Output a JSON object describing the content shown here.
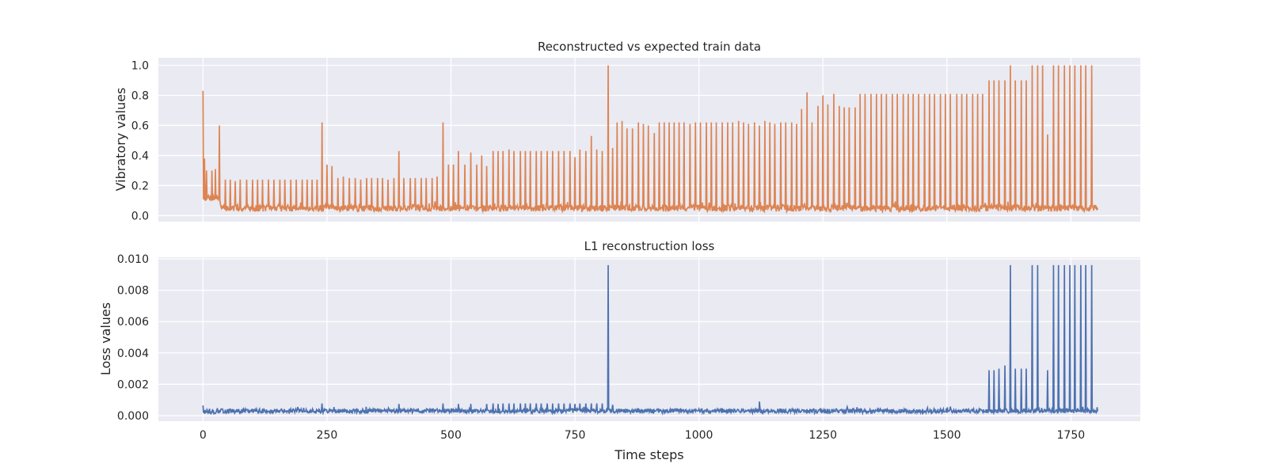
{
  "chart_data": [
    {
      "type": "line",
      "title": "Reconstructed vs expected train data",
      "xlabel": "",
      "ylabel": "Vibratory values",
      "xlim": [
        -90,
        1890
      ],
      "ylim": [
        -0.04,
        1.05
      ],
      "xticks": [
        0,
        250,
        500,
        750,
        1000,
        1250,
        1500,
        1750
      ],
      "yticks": [
        0.0,
        0.2,
        0.4,
        0.6,
        0.8,
        1.0
      ],
      "ytick_labels": [
        "0.0",
        "0.2",
        "0.4",
        "0.6",
        "0.8",
        "1.0"
      ],
      "grid": true,
      "color": "#dd8452",
      "spikes": [
        [
          0,
          0.83
        ],
        [
          3,
          0.38
        ],
        [
          7,
          0.3
        ],
        [
          18,
          0.3
        ],
        [
          25,
          0.31
        ],
        [
          33,
          0.6
        ],
        [
          45,
          0.24
        ],
        [
          55,
          0.24
        ],
        [
          65,
          0.23
        ],
        [
          75,
          0.24
        ],
        [
          88,
          0.24
        ],
        [
          100,
          0.24
        ],
        [
          110,
          0.24
        ],
        [
          120,
          0.24
        ],
        [
          132,
          0.24
        ],
        [
          143,
          0.24
        ],
        [
          155,
          0.24
        ],
        [
          165,
          0.24
        ],
        [
          177,
          0.24
        ],
        [
          188,
          0.24
        ],
        [
          200,
          0.24
        ],
        [
          210,
          0.24
        ],
        [
          220,
          0.24
        ],
        [
          230,
          0.24
        ],
        [
          240,
          0.62
        ],
        [
          250,
          0.34
        ],
        [
          260,
          0.33
        ],
        [
          272,
          0.25
        ],
        [
          283,
          0.26
        ],
        [
          295,
          0.25
        ],
        [
          307,
          0.25
        ],
        [
          318,
          0.24
        ],
        [
          330,
          0.25
        ],
        [
          340,
          0.25
        ],
        [
          352,
          0.25
        ],
        [
          362,
          0.25
        ],
        [
          373,
          0.24
        ],
        [
          385,
          0.25
        ],
        [
          395,
          0.43
        ],
        [
          405,
          0.25
        ],
        [
          418,
          0.25
        ],
        [
          428,
          0.25
        ],
        [
          440,
          0.25
        ],
        [
          450,
          0.25
        ],
        [
          462,
          0.25
        ],
        [
          472,
          0.26
        ],
        [
          484,
          0.62
        ],
        [
          495,
          0.34
        ],
        [
          505,
          0.34
        ],
        [
          515,
          0.43
        ],
        [
          528,
          0.34
        ],
        [
          540,
          0.42
        ],
        [
          552,
          0.34
        ],
        [
          562,
          0.4
        ],
        [
          572,
          0.33
        ],
        [
          585,
          0.43
        ],
        [
          595,
          0.43
        ],
        [
          605,
          0.43
        ],
        [
          617,
          0.44
        ],
        [
          627,
          0.43
        ],
        [
          640,
          0.43
        ],
        [
          650,
          0.43
        ],
        [
          660,
          0.43
        ],
        [
          672,
          0.43
        ],
        [
          682,
          0.43
        ],
        [
          694,
          0.43
        ],
        [
          705,
          0.43
        ],
        [
          717,
          0.43
        ],
        [
          728,
          0.43
        ],
        [
          740,
          0.43
        ],
        [
          750,
          0.39
        ],
        [
          760,
          0.44
        ],
        [
          772,
          0.43
        ],
        [
          783,
          0.53
        ],
        [
          794,
          0.44
        ],
        [
          805,
          0.43
        ],
        [
          817,
          1.0
        ],
        [
          826,
          0.45
        ],
        [
          835,
          0.62
        ],
        [
          845,
          0.63
        ],
        [
          855,
          0.58
        ],
        [
          866,
          0.58
        ],
        [
          878,
          0.62
        ],
        [
          888,
          0.61
        ],
        [
          898,
          0.6
        ],
        [
          910,
          0.55
        ],
        [
          920,
          0.62
        ],
        [
          930,
          0.62
        ],
        [
          940,
          0.62
        ],
        [
          950,
          0.62
        ],
        [
          960,
          0.62
        ],
        [
          970,
          0.62
        ],
        [
          982,
          0.61
        ],
        [
          993,
          0.62
        ],
        [
          1003,
          0.62
        ],
        [
          1015,
          0.62
        ],
        [
          1025,
          0.62
        ],
        [
          1035,
          0.62
        ],
        [
          1047,
          0.62
        ],
        [
          1058,
          0.62
        ],
        [
          1068,
          0.62
        ],
        [
          1080,
          0.63
        ],
        [
          1090,
          0.62
        ],
        [
          1100,
          0.61
        ],
        [
          1112,
          0.62
        ],
        [
          1122,
          0.6
        ],
        [
          1133,
          0.63
        ],
        [
          1143,
          0.62
        ],
        [
          1153,
          0.61
        ],
        [
          1165,
          0.62
        ],
        [
          1175,
          0.62
        ],
        [
          1187,
          0.62
        ],
        [
          1197,
          0.61
        ],
        [
          1207,
          0.71
        ],
        [
          1218,
          0.82
        ],
        [
          1228,
          0.62
        ],
        [
          1240,
          0.73
        ],
        [
          1250,
          0.8
        ],
        [
          1260,
          0.74
        ],
        [
          1272,
          0.81
        ],
        [
          1283,
          0.73
        ],
        [
          1293,
          0.72
        ],
        [
          1303,
          0.72
        ],
        [
          1315,
          0.72
        ],
        [
          1325,
          0.81
        ],
        [
          1335,
          0.81
        ],
        [
          1347,
          0.81
        ],
        [
          1358,
          0.81
        ],
        [
          1368,
          0.81
        ],
        [
          1378,
          0.81
        ],
        [
          1390,
          0.81
        ],
        [
          1400,
          0.81
        ],
        [
          1412,
          0.81
        ],
        [
          1422,
          0.81
        ],
        [
          1432,
          0.81
        ],
        [
          1443,
          0.81
        ],
        [
          1455,
          0.81
        ],
        [
          1465,
          0.81
        ],
        [
          1475,
          0.81
        ],
        [
          1487,
          0.81
        ],
        [
          1497,
          0.81
        ],
        [
          1507,
          0.81
        ],
        [
          1520,
          0.81
        ],
        [
          1530,
          0.81
        ],
        [
          1540,
          0.81
        ],
        [
          1552,
          0.81
        ],
        [
          1562,
          0.81
        ],
        [
          1572,
          0.81
        ],
        [
          1585,
          0.9
        ],
        [
          1595,
          0.9
        ],
        [
          1605,
          0.9
        ],
        [
          1617,
          0.9
        ],
        [
          1628,
          1.0
        ],
        [
          1638,
          0.9
        ],
        [
          1650,
          0.9
        ],
        [
          1660,
          0.9
        ],
        [
          1672,
          1.0
        ],
        [
          1683,
          1.0
        ],
        [
          1693,
          1.0
        ],
        [
          1703,
          0.54
        ],
        [
          1715,
          1.0
        ],
        [
          1725,
          1.0
        ],
        [
          1737,
          1.0
        ],
        [
          1748,
          1.0
        ],
        [
          1758,
          1.0
        ],
        [
          1770,
          1.0
        ],
        [
          1780,
          1.0
        ],
        [
          1792,
          1.0
        ]
      ],
      "baseline": {
        "x_start": 0,
        "x_end": 1804,
        "early_level": 0.12,
        "early_until": 35,
        "level": 0.05
      }
    },
    {
      "type": "line",
      "title": "L1 reconstruction loss",
      "xlabel": "Time steps",
      "ylabel": "Loss values",
      "xlim": [
        -90,
        1890
      ],
      "ylim": [
        -0.00035,
        0.0101
      ],
      "xticks": [
        0,
        250,
        500,
        750,
        1000,
        1250,
        1500,
        1750
      ],
      "xtick_labels": [
        "0",
        "250",
        "500",
        "750",
        "1000",
        "1250",
        "1500",
        "1750"
      ],
      "yticks": [
        0.0,
        0.002,
        0.004,
        0.006,
        0.008,
        0.01
      ],
      "ytick_labels": [
        "0.000",
        "0.002",
        "0.004",
        "0.006",
        "0.008",
        "0.010"
      ],
      "grid": true,
      "color": "#4c72b0",
      "spikes": [
        [
          0,
          0.00065
        ],
        [
          240,
          0.00078
        ],
        [
          395,
          0.00075
        ],
        [
          484,
          0.00078
        ],
        [
          515,
          0.00075
        ],
        [
          540,
          0.00075
        ],
        [
          572,
          0.00075
        ],
        [
          585,
          0.00078
        ],
        [
          595,
          0.00075
        ],
        [
          605,
          0.00078
        ],
        [
          617,
          0.00078
        ],
        [
          627,
          0.00078
        ],
        [
          640,
          0.00078
        ],
        [
          650,
          0.00078
        ],
        [
          660,
          0.00078
        ],
        [
          672,
          0.00078
        ],
        [
          682,
          0.00078
        ],
        [
          694,
          0.00078
        ],
        [
          705,
          0.00078
        ],
        [
          717,
          0.00078
        ],
        [
          728,
          0.00078
        ],
        [
          740,
          0.00078
        ],
        [
          750,
          0.00075
        ],
        [
          760,
          0.00078
        ],
        [
          772,
          0.00078
        ],
        [
          783,
          0.00078
        ],
        [
          794,
          0.00078
        ],
        [
          805,
          0.00078
        ],
        [
          817,
          0.0096
        ],
        [
          826,
          0.0007
        ],
        [
          1122,
          0.0009
        ],
        [
          1507,
          0.00058
        ],
        [
          1585,
          0.0029
        ],
        [
          1595,
          0.0029
        ],
        [
          1605,
          0.003
        ],
        [
          1617,
          0.0032
        ],
        [
          1628,
          0.0096
        ],
        [
          1638,
          0.003
        ],
        [
          1650,
          0.003
        ],
        [
          1660,
          0.003
        ],
        [
          1672,
          0.0096
        ],
        [
          1683,
          0.0096
        ],
        [
          1703,
          0.0029
        ],
        [
          1715,
          0.0096
        ],
        [
          1725,
          0.0096
        ],
        [
          1737,
          0.0096
        ],
        [
          1748,
          0.0096
        ],
        [
          1758,
          0.0096
        ],
        [
          1770,
          0.0096
        ],
        [
          1780,
          0.0096
        ],
        [
          1792,
          0.0096
        ]
      ],
      "baseline": {
        "x_start": 0,
        "x_end": 1804,
        "early_level": 0.00025,
        "early_until": 35,
        "level": 0.0003
      }
    }
  ]
}
